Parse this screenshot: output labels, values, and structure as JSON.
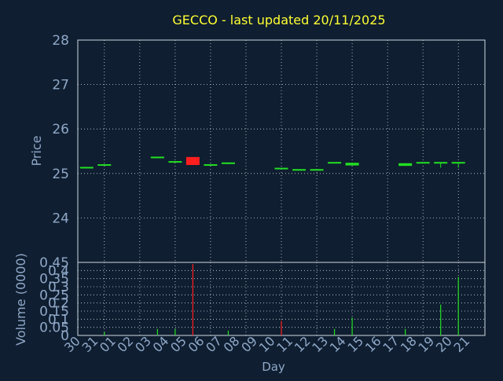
{
  "colors": {
    "background": "#0f1e30",
    "title": "#ffff33",
    "axis_text": "#8fa8c8",
    "grid": "#cfd8e0",
    "up": "#22e022",
    "down": "#ff1e1e"
  },
  "chart_data": [
    {
      "type": "candlestick",
      "title": "GECCO - last updated 20/11/2025",
      "ylabel": "Price",
      "ylim": [
        23,
        28
      ],
      "yticks": [
        "24",
        "25",
        "26",
        "27",
        "28"
      ],
      "grid": true,
      "days": [
        "30",
        "31",
        "01",
        "02",
        "03",
        "04",
        "05",
        "06",
        "07",
        "08",
        "09",
        "10",
        "11",
        "12",
        "13",
        "14",
        "15",
        "16",
        "17",
        "18",
        "19",
        "20",
        "21"
      ],
      "candles": [
        {
          "day": "30",
          "open": 25.13,
          "close": 25.13,
          "high": 25.13,
          "low": 25.13
        },
        {
          "day": "31",
          "open": 25.19,
          "close": 25.19,
          "high": 25.19,
          "low": 25.19
        },
        {
          "day": "03",
          "open": 25.36,
          "close": 25.36,
          "high": 25.36,
          "low": 25.36
        },
        {
          "day": "04",
          "open": 25.26,
          "close": 25.26,
          "high": 25.26,
          "low": 25.26
        },
        {
          "day": "05",
          "open": 25.37,
          "close": 25.19,
          "high": 25.37,
          "low": 25.19
        },
        {
          "day": "06",
          "open": 25.19,
          "close": 25.19,
          "high": 25.19,
          "low": 25.19
        },
        {
          "day": "07",
          "open": 25.23,
          "close": 25.23,
          "high": 25.23,
          "low": 25.21
        },
        {
          "day": "10",
          "open": 25.11,
          "close": 25.11,
          "high": 25.11,
          "low": 25.11
        },
        {
          "day": "11",
          "open": 25.08,
          "close": 25.08,
          "high": 25.08,
          "low": 25.08
        },
        {
          "day": "12",
          "open": 25.08,
          "close": 25.08,
          "high": 25.08,
          "low": 25.08
        },
        {
          "day": "13",
          "open": 25.24,
          "close": 25.24,
          "high": 25.24,
          "low": 25.24
        },
        {
          "day": "14",
          "open": 25.18,
          "close": 25.24,
          "high": 25.24,
          "low": 25.18
        },
        {
          "day": "17",
          "open": 25.17,
          "close": 25.23,
          "high": 25.23,
          "low": 25.17
        },
        {
          "day": "18",
          "open": 25.24,
          "close": 25.24,
          "high": 25.24,
          "low": 25.24
        },
        {
          "day": "19",
          "open": 25.24,
          "close": 25.24,
          "high": 25.24,
          "low": 25.13
        },
        {
          "day": "20",
          "open": 25.24,
          "close": 25.24,
          "high": 25.24,
          "low": 25.13
        }
      ]
    },
    {
      "type": "bar",
      "xlabel": "Day",
      "ylabel": "Volume (0000)",
      "ylim": [
        0,
        0.45
      ],
      "yticks": [
        "0",
        "0.05",
        "0.1",
        "0.15",
        "0.2",
        "0.25",
        "0.3",
        "0.35",
        "0.4",
        "0.45"
      ],
      "grid": true,
      "bars": [
        {
          "day": "31",
          "value": 0.02,
          "direction": "up"
        },
        {
          "day": "03",
          "value": 0.04,
          "direction": "up"
        },
        {
          "day": "04",
          "value": 0.04,
          "direction": "up"
        },
        {
          "day": "05",
          "value": 0.44,
          "direction": "down"
        },
        {
          "day": "07",
          "value": 0.03,
          "direction": "up"
        },
        {
          "day": "10",
          "value": 0.09,
          "direction": "down"
        },
        {
          "day": "13",
          "value": 0.04,
          "direction": "up"
        },
        {
          "day": "14",
          "value": 0.11,
          "direction": "up"
        },
        {
          "day": "17",
          "value": 0.04,
          "direction": "up"
        },
        {
          "day": "19",
          "value": 0.19,
          "direction": "up"
        },
        {
          "day": "20",
          "value": 0.36,
          "direction": "up"
        }
      ]
    }
  ]
}
